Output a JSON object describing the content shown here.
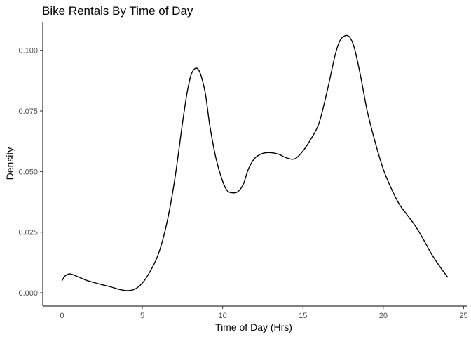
{
  "chart_data": {
    "type": "line",
    "title": "Bike Rentals By Time of Day",
    "xlabel": "Time of Day (Hrs)",
    "ylabel": "Density",
    "xlim": [
      -1.2,
      25.2
    ],
    "ylim": [
      -0.0055,
      0.1115
    ],
    "x_ticks": [
      0,
      5,
      10,
      15,
      20,
      25
    ],
    "x_tick_labels": [
      "0",
      "5",
      "10",
      "15",
      "20",
      "25"
    ],
    "y_ticks": [
      0.0,
      0.025,
      0.05,
      0.075,
      0.1
    ],
    "y_tick_labels": [
      "0.000",
      "0.025",
      "0.050",
      "0.075",
      "0.100"
    ],
    "grid": false,
    "legend": "none",
    "line_color": "#000000",
    "series": [
      {
        "x": [
          0,
          0.2,
          0.5,
          1,
          1.5,
          2,
          2.5,
          3,
          3.5,
          4,
          4.5,
          5,
          5.5,
          6,
          6.5,
          7,
          7.5,
          7.8,
          8.1,
          8.5,
          8.9,
          9.2,
          9.6,
          10,
          10.3,
          10.7,
          11,
          11.3,
          11.6,
          12,
          12.5,
          13,
          13.5,
          14,
          14.5,
          15,
          15.5,
          16,
          16.5,
          17,
          17.3,
          17.6,
          17.9,
          18.2,
          18.6,
          19,
          19.5,
          20,
          20.5,
          21,
          21.5,
          22,
          22.5,
          23,
          23.5,
          24
        ],
        "y": [
          0.005,
          0.007,
          0.0078,
          0.0066,
          0.0052,
          0.0042,
          0.0033,
          0.0025,
          0.0015,
          0.0009,
          0.0014,
          0.004,
          0.009,
          0.016,
          0.028,
          0.046,
          0.07,
          0.083,
          0.091,
          0.092,
          0.083,
          0.069,
          0.055,
          0.046,
          0.042,
          0.0412,
          0.042,
          0.045,
          0.051,
          0.0555,
          0.0575,
          0.0578,
          0.0571,
          0.0556,
          0.0553,
          0.0585,
          0.0635,
          0.07,
          0.083,
          0.098,
          0.104,
          0.106,
          0.1055,
          0.101,
          0.089,
          0.075,
          0.062,
          0.051,
          0.043,
          0.0365,
          0.032,
          0.0275,
          0.022,
          0.016,
          0.011,
          0.0065
        ]
      }
    ]
  }
}
